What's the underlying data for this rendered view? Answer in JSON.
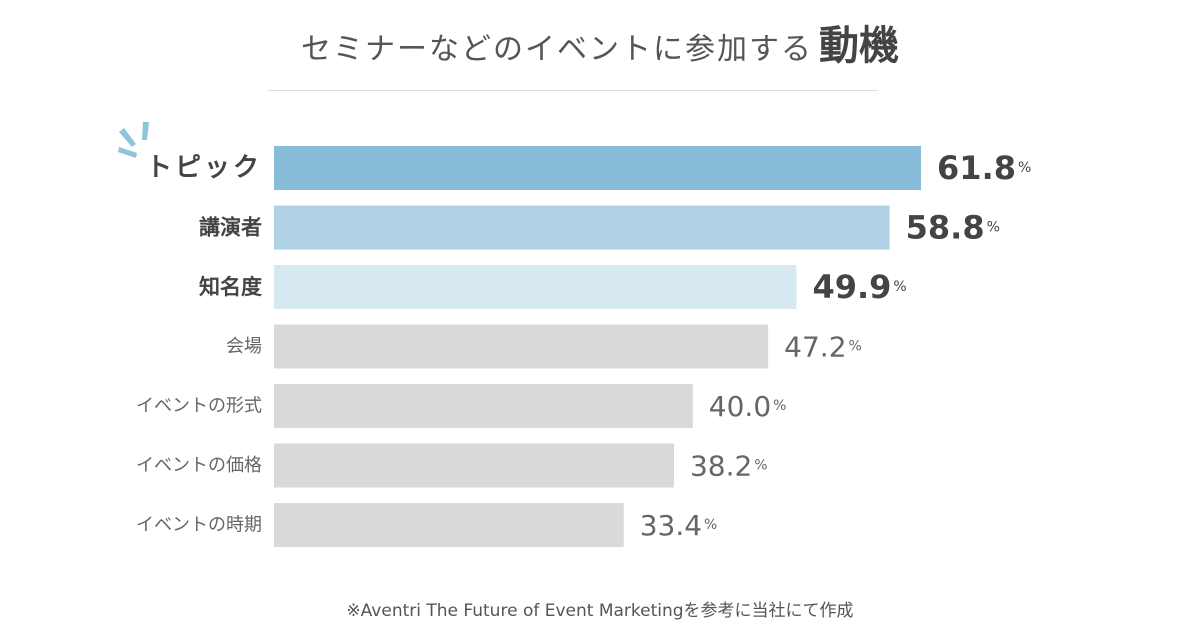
{
  "title": {
    "main": "セミナーなどのイベントに参加する",
    "emphasis": "動機"
  },
  "chart_data": {
    "type": "bar",
    "orientation": "horizontal",
    "categories": [
      "トピック",
      "講演者",
      "知名度",
      "会場",
      "イベントの形式",
      "イベントの価格",
      "イベントの時期"
    ],
    "values": [
      61.8,
      58.8,
      49.9,
      47.2,
      40.0,
      38.2,
      33.4
    ],
    "value_labels": [
      "61.8",
      "58.8",
      "49.9",
      "47.2",
      "40.0",
      "38.2",
      "33.4"
    ],
    "unit": "%",
    "xlim": [
      0,
      100
    ],
    "grid": false,
    "legend": "none",
    "highlight_top": 3,
    "colors": [
      "#86bcd7",
      "#afd3e4",
      "#d6e8f0",
      "#d9d9d9",
      "#d9d9d9",
      "#d9d9d9",
      "#d9d9d9"
    ]
  },
  "source": "※Aventri The Future of Event Marketingを参考に当社にて作成",
  "colors": {
    "sparkle": "#8ec4dc",
    "emphasis_text": "#444444",
    "normal_text": "#555555"
  }
}
